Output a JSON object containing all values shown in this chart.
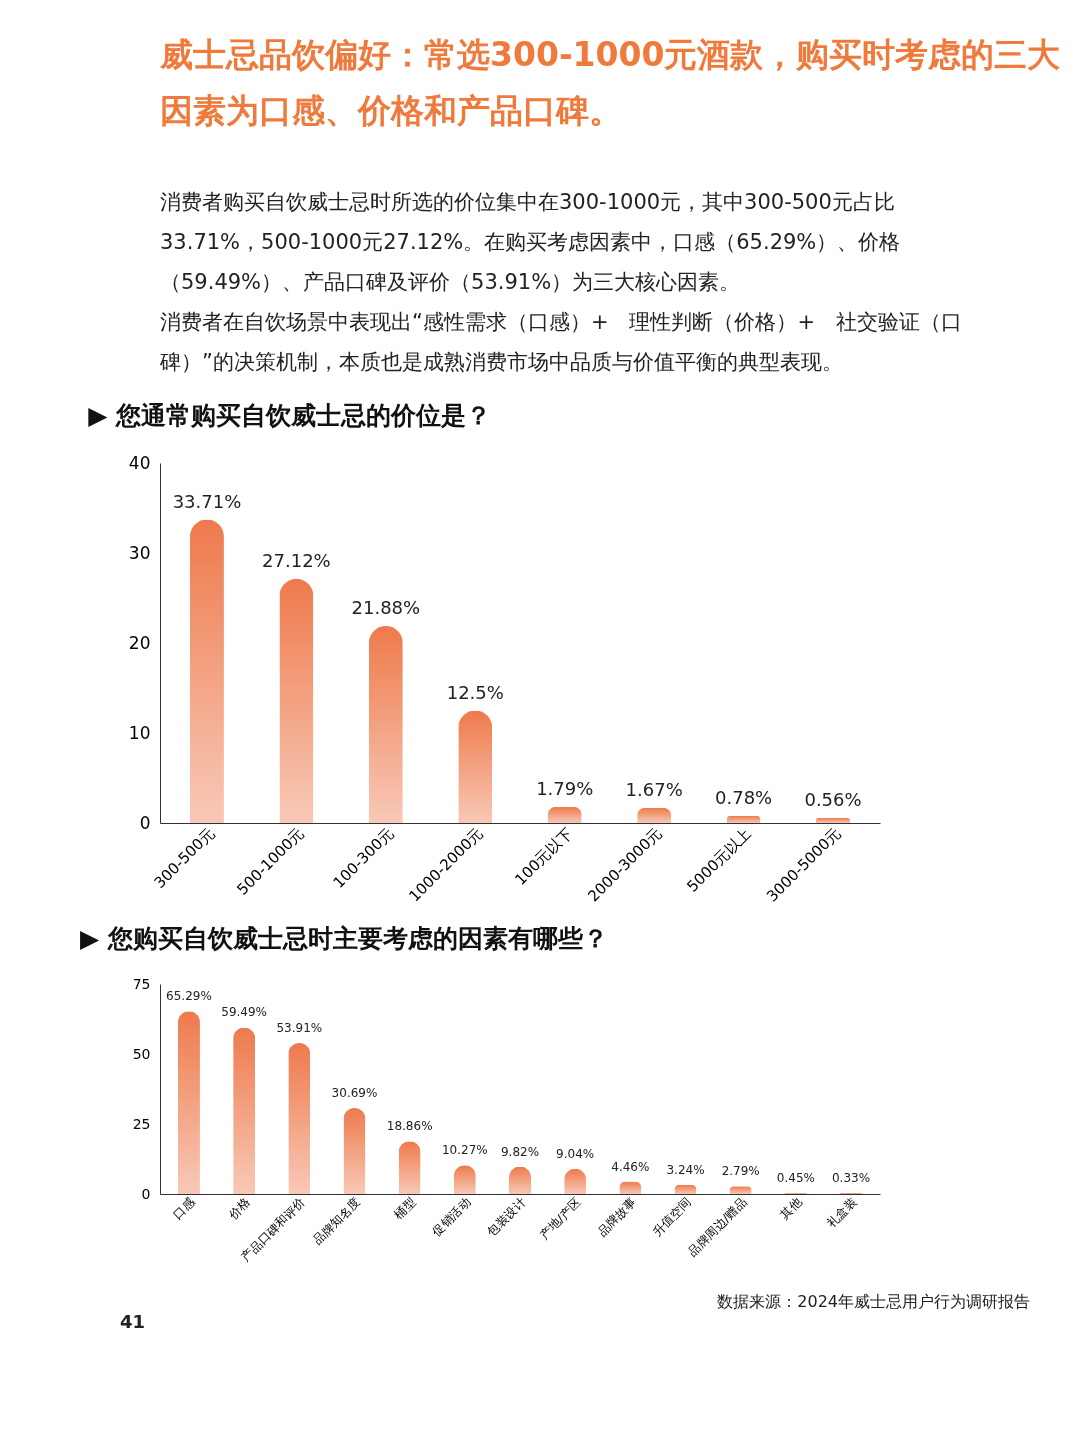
{
  "chart_data": [
    {
      "type": "other",
      "title": "威士忌品饮偏好：常选300-1000元酒款，购买时考虑的三大因素为口感、价格和产品口碑。",
      "annotations": [
        "消费者购买自饮威士忌时所选的价位集中在300-1000元，其中300-500元占比",
        "33.71%，500-1000元27.12%。在购买考虑因素中，口感（65.29%）、价格",
        "（59.49%）、产品口碑及评价（53.91%）为三大核心因素。",
        "消费者在自饮场景中表现出“感性需求（口感）+　理性判断（价格）+　社交验证（口",
        "碑）”的决策机制，本质也是成熟消费市场中品质与价值平衡的典型表现。"
      ]
    },
    {
      "type": "bar",
      "title": "▶ 您通常购买自饮威士忌的价位是？",
      "categories": [
        "300-500元",
        "500-1000元",
        "100-300元",
        "1000-2000元",
        "100元以下",
        "2000-3000元",
        "5000元以上",
        "3000-5000元"
      ],
      "values": [
        33.71,
        27.12,
        21.88,
        12.5,
        1.79,
        1.67,
        0.78,
        0.56
      ],
      "value_labels": [
        "33.71%",
        "27.12%",
        "21.88%",
        "12.5%",
        "1.79%",
        "1.67%",
        "0.78%",
        "0.56%"
      ],
      "color": "#ee7a4c",
      "ylim": [
        0,
        40
      ],
      "yticks": [
        0,
        10,
        20,
        30,
        40
      ],
      "grid": false
    },
    {
      "type": "bar",
      "title": "▶ 您购买自饮威士忌时主要考虑的因素有哪些？",
      "categories": [
        "口感",
        "价格",
        "产品口碑和评价",
        "品牌知名度",
        "桶型",
        "促销活动",
        "包装设计",
        "产地/产区",
        "品牌故事",
        "升值空间",
        "品牌周边/赠品",
        "其他",
        "礼盒装"
      ],
      "values": [
        65.29,
        59.49,
        53.91,
        30.69,
        18.86,
        10.27,
        9.82,
        9.04,
        4.46,
        3.24,
        2.79,
        0.45,
        0.33
      ],
      "value_labels": [
        "65.29%",
        "59.49%",
        "53.91%",
        "30.69%",
        "18.86%",
        "10.27%",
        "9.82%",
        "9.04%",
        "4.46%",
        "3.24%",
        "2.79%",
        "0.45%",
        "0.33%"
      ],
      "color": "#ee7a4c",
      "ylim": [
        0,
        75
      ],
      "yticks": [
        0,
        25,
        50,
        75
      ],
      "grid": false,
      "annotations": [
        "数据来源：2024年威士忌用户行为调研报告",
        "41"
      ]
    }
  ]
}
